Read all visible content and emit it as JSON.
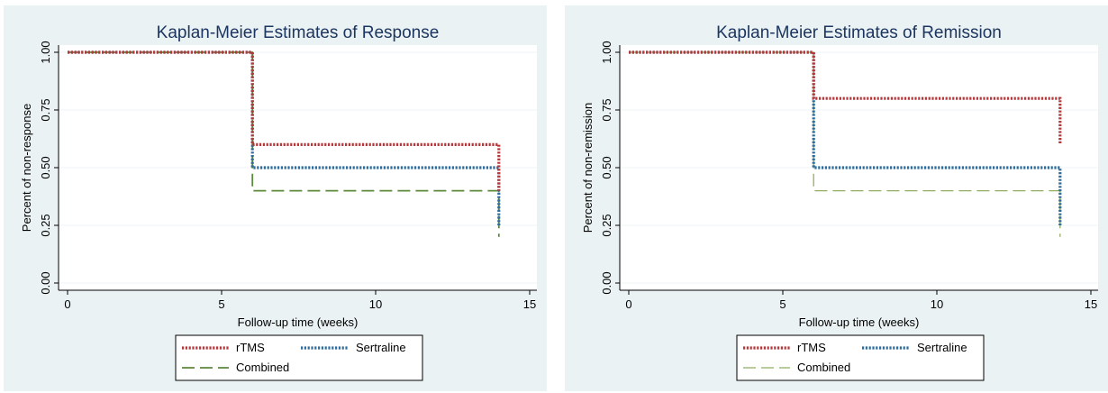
{
  "chart_data": [
    {
      "type": "line",
      "step": true,
      "title": "Kaplan-Meier Estimates of Response",
      "xlabel": "Follow-up time (weeks)",
      "ylabel": "Percent of non-response",
      "xlim": [
        0,
        15
      ],
      "ylim": [
        0,
        1
      ],
      "xticks": [
        "0",
        "5",
        "10",
        "15"
      ],
      "yticks": [
        "0.00",
        "0.25",
        "0.50",
        "0.75",
        "1.00"
      ],
      "grid": true,
      "legend_position": "bottom",
      "series": [
        {
          "name": "rTMS",
          "color": "#b5373a",
          "style": "dotted",
          "x": [
            0,
            6,
            14,
            14
          ],
          "y": [
            1.0,
            0.6,
            0.6,
            0.4
          ]
        },
        {
          "name": "Sertraline",
          "color": "#2f6b9b",
          "style": "dotted",
          "x": [
            0,
            6,
            14,
            14
          ],
          "y": [
            1.0,
            0.5,
            0.5,
            0.25
          ]
        },
        {
          "name": "Combined",
          "color": "#5d8a3a",
          "style": "dashed",
          "x": [
            0,
            6,
            14,
            14
          ],
          "y": [
            1.0,
            0.4,
            0.4,
            0.2
          ]
        }
      ]
    },
    {
      "type": "line",
      "step": true,
      "title": "Kaplan-Meier Estimates of Remission",
      "xlabel": "Follow-up time (weeks)",
      "ylabel": "Percent of non-remission",
      "xlim": [
        0,
        15
      ],
      "ylim": [
        0,
        1
      ],
      "xticks": [
        "0",
        "5",
        "10",
        "15"
      ],
      "yticks": [
        "0.00",
        "0.25",
        "0.50",
        "0.75",
        "1.00"
      ],
      "grid": true,
      "legend_position": "bottom",
      "series": [
        {
          "name": "rTMS",
          "color": "#b5373a",
          "style": "dotted",
          "x": [
            0,
            6,
            14,
            14
          ],
          "y": [
            1.0,
            0.8,
            0.8,
            0.6
          ]
        },
        {
          "name": "Sertraline",
          "color": "#2f6b9b",
          "style": "dotted",
          "x": [
            0,
            6,
            14,
            14
          ],
          "y": [
            1.0,
            0.5,
            0.5,
            0.25
          ]
        },
        {
          "name": "Combined",
          "color": "#8fae62",
          "style": "dashed-thin",
          "x": [
            0,
            6,
            14,
            14
          ],
          "y": [
            1.0,
            0.4,
            0.4,
            0.2
          ]
        }
      ]
    }
  ]
}
